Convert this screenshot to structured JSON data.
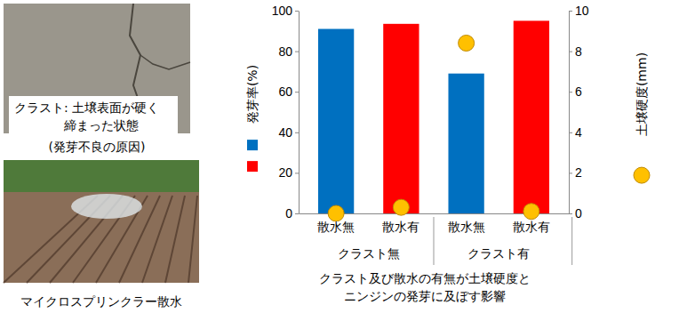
{
  "chart_data": {
    "type": "bar",
    "title": "クラスト及び散水の有無が土壌硬度とニンジンの発芽に及ぼす影響",
    "categories": [
      "散水無",
      "散水有",
      "散水無",
      "散水有"
    ],
    "groups": [
      {
        "name": "クラスト無",
        "count": 2
      },
      {
        "name": "クラスト有",
        "count": 2
      }
    ],
    "series": [
      {
        "name": "発芽率(%)",
        "type": "bar",
        "colors": [
          "#0070c0",
          "#ff0000",
          "#0070c0",
          "#ff0000"
        ],
        "values": [
          91,
          93.5,
          69,
          95
        ]
      },
      {
        "name": "土壌硬度(mm)",
        "type": "scatter",
        "axis": "y2",
        "color": "#ffc000",
        "marker": "circle",
        "values": [
          0,
          0.3,
          8.4,
          0.1
        ]
      }
    ],
    "ylim": [
      0,
      100
    ],
    "yticks": [
      0,
      20,
      40,
      60,
      80,
      100
    ],
    "y2lim": [
      0,
      10
    ],
    "y2ticks": [
      0,
      2,
      4,
      6,
      8,
      10
    ],
    "grid": false
  },
  "photos": [
    {
      "caption_lines": [
        "クラスト: 土壌表面が硬く",
        "締まった状態"
      ],
      "note": "(発芽不良の原因)"
    },
    {
      "caption_lines": [
        "マイクロスプリンクラー散水"
      ]
    }
  ]
}
